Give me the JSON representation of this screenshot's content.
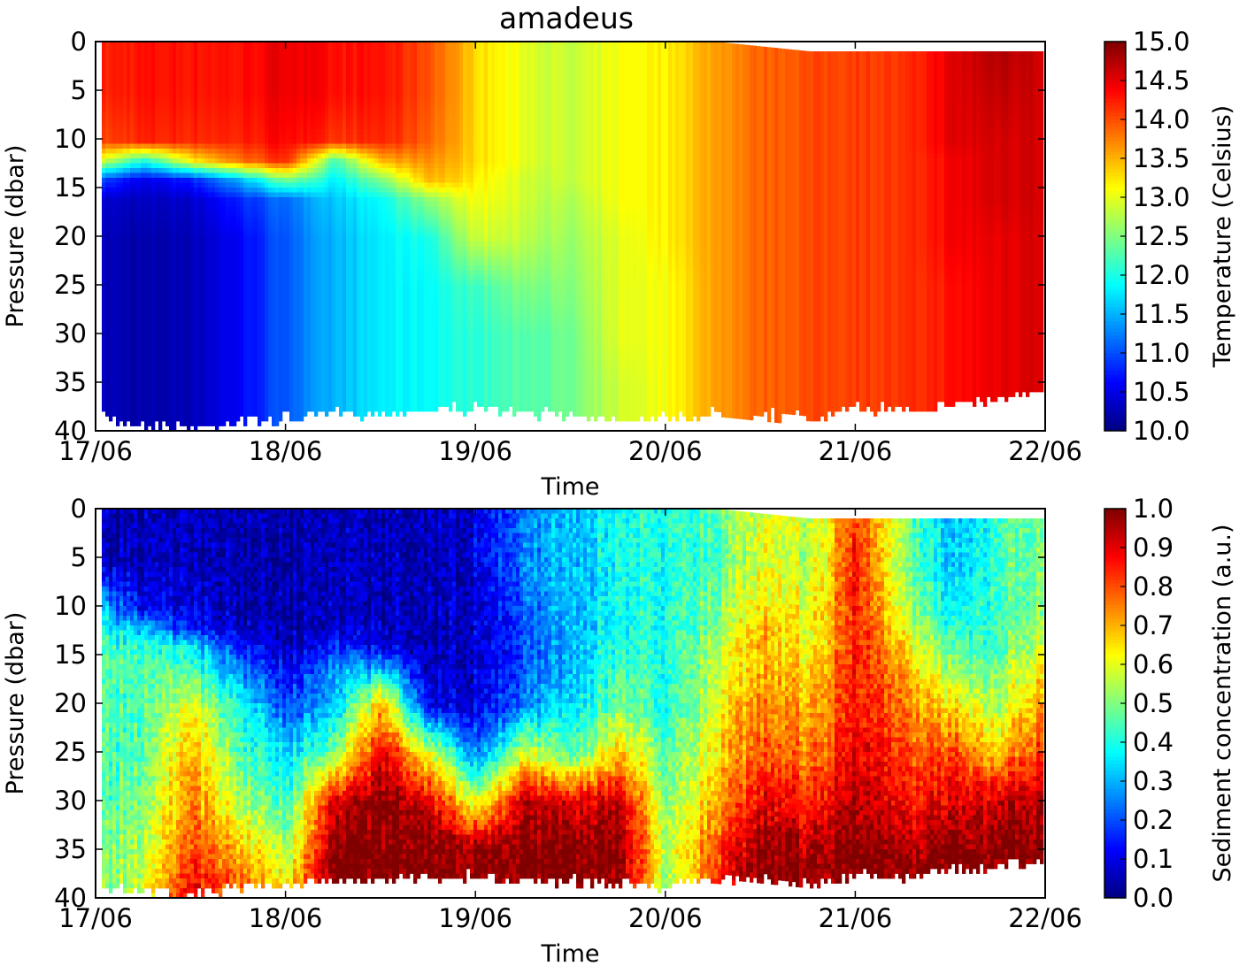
{
  "title": "amadeus",
  "chart_data": [
    {
      "type": "heatmap",
      "xlabel": "Time",
      "ylabel": "Pressure (dbar)",
      "colorbar_label": "Temperature (Celsius)",
      "colormap": "jet",
      "clim": [
        10.0,
        15.0
      ],
      "colorbar_ticks": [
        "10.0",
        "10.5",
        "11.0",
        "11.5",
        "12.0",
        "12.5",
        "13.0",
        "13.5",
        "14.0",
        "14.5",
        "15.0"
      ],
      "x_ticks": [
        "17/06",
        "18/06",
        "19/06",
        "20/06",
        "21/06",
        "22/06"
      ],
      "y_ticks": [
        "0",
        "5",
        "10",
        "15",
        "20",
        "25",
        "30",
        "35",
        "40"
      ],
      "ylim": [
        40,
        0
      ],
      "times": [
        "17/06 00:00",
        "17/06 06:00",
        "17/06 12:00",
        "17/06 18:00",
        "18/06 00:00",
        "18/06 06:00",
        "18/06 12:00",
        "18/06 18:00",
        "19/06 00:00",
        "19/06 06:00",
        "19/06 12:00",
        "19/06 18:00",
        "20/06 00:00",
        "20/06 06:00",
        "20/06 12:00",
        "20/06 18:00",
        "21/06 00:00",
        "21/06 06:00",
        "21/06 12:00",
        "21/06 18:00",
        "22/06 00:00"
      ],
      "pressures": [
        0,
        5,
        10,
        12,
        14,
        16,
        20,
        25,
        30,
        35,
        40
      ],
      "values": [
        [
          14.2,
          14.2,
          14.0,
          13.0,
          11.0,
          10.4,
          10.3,
          10.3,
          10.3,
          10.3,
          10.3
        ],
        [
          14.3,
          14.3,
          14.2,
          12.0,
          10.5,
          10.3,
          10.2,
          10.2,
          10.2,
          10.2,
          10.2
        ],
        [
          14.3,
          14.3,
          14.2,
          13.2,
          10.8,
          10.4,
          10.3,
          10.3,
          10.3,
          10.3,
          10.3
        ],
        [
          14.3,
          14.3,
          14.2,
          13.8,
          11.5,
          10.8,
          10.6,
          10.6,
          10.6,
          10.6,
          10.6
        ],
        [
          14.5,
          14.5,
          14.4,
          14.2,
          12.5,
          11.2,
          11.1,
          11.1,
          11.1,
          11.1,
          11.1
        ],
        [
          14.3,
          14.3,
          14.1,
          12.2,
          11.8,
          11.6,
          11.5,
          11.5,
          11.5,
          11.5,
          11.5
        ],
        [
          14.3,
          14.3,
          14.2,
          13.5,
          12.5,
          11.9,
          11.8,
          11.8,
          11.8,
          11.8,
          11.8
        ],
        [
          14.0,
          14.0,
          13.9,
          13.7,
          13.5,
          12.6,
          12.0,
          11.9,
          11.9,
          11.9,
          11.9
        ],
        [
          13.3,
          13.3,
          13.3,
          13.3,
          13.2,
          13.1,
          12.9,
          12.2,
          12.1,
          12.1,
          12.1
        ],
        [
          13.0,
          13.0,
          13.0,
          13.0,
          12.9,
          12.9,
          12.8,
          12.5,
          12.3,
          12.3,
          12.3
        ],
        [
          12.8,
          12.8,
          12.8,
          12.8,
          12.8,
          12.7,
          12.6,
          12.5,
          12.4,
          12.4,
          12.4
        ],
        [
          13.1,
          13.1,
          13.1,
          13.1,
          13.1,
          13.1,
          13.0,
          13.0,
          13.0,
          12.9,
          12.9
        ],
        [
          13.2,
          13.2,
          13.2,
          13.2,
          13.2,
          13.2,
          13.2,
          13.1,
          13.1,
          13.1,
          13.1
        ],
        [
          13.6,
          13.6,
          13.6,
          13.6,
          13.6,
          13.6,
          13.6,
          13.6,
          13.6,
          13.6,
          13.6
        ],
        [
          13.9,
          13.9,
          13.9,
          13.9,
          13.9,
          13.9,
          13.9,
          13.9,
          13.9,
          13.9,
          13.9
        ],
        [
          14.0,
          14.0,
          14.0,
          14.0,
          14.0,
          14.0,
          14.0,
          14.0,
          14.0,
          14.0,
          14.0
        ],
        [
          14.1,
          14.1,
          14.1,
          14.1,
          14.1,
          14.1,
          14.1,
          14.1,
          14.1,
          14.1,
          14.1
        ],
        [
          14.1,
          14.1,
          14.1,
          14.1,
          14.1,
          14.1,
          14.1,
          14.1,
          14.1,
          14.1,
          14.1
        ],
        [
          14.5,
          14.5,
          14.5,
          14.4,
          14.4,
          14.4,
          14.4,
          14.3,
          14.3,
          14.3,
          14.3
        ],
        [
          14.8,
          14.7,
          14.6,
          14.6,
          14.6,
          14.6,
          14.5,
          14.5,
          14.5,
          14.5,
          14.5
        ],
        [
          14.6,
          14.6,
          14.6,
          14.6,
          14.6,
          14.6,
          14.6,
          14.6,
          14.6,
          14.6,
          14.6
        ]
      ],
      "max_pressure": [
        38.5,
        39,
        39.5,
        38.7,
        38.5,
        38,
        38,
        37.5,
        37.5,
        38,
        38,
        38.5,
        38.5,
        38,
        38,
        38.5,
        37.5,
        37.5,
        37,
        36.5,
        36
      ],
      "min_pressure": [
        0,
        0,
        0,
        0,
        0,
        0,
        0,
        0,
        0,
        0,
        0,
        0,
        0,
        0,
        0.5,
        1,
        1,
        1,
        1,
        1,
        1
      ]
    },
    {
      "type": "heatmap",
      "xlabel": "Time",
      "ylabel": "Pressure (dbar)",
      "colorbar_label": "Sediment concentration (a.u.)",
      "colormap": "jet",
      "clim": [
        0.0,
        1.0
      ],
      "colorbar_ticks": [
        "0.0",
        "0.1",
        "0.2",
        "0.3",
        "0.4",
        "0.5",
        "0.6",
        "0.7",
        "0.8",
        "0.9",
        "1.0"
      ],
      "x_ticks": [
        "17/06",
        "18/06",
        "19/06",
        "20/06",
        "21/06",
        "22/06"
      ],
      "y_ticks": [
        "0",
        "5",
        "10",
        "15",
        "20",
        "25",
        "30",
        "35",
        "40"
      ],
      "ylim": [
        40,
        0
      ],
      "times": [
        "17/06 00:00",
        "17/06 06:00",
        "17/06 12:00",
        "17/06 18:00",
        "18/06 00:00",
        "18/06 06:00",
        "18/06 12:00",
        "18/06 18:00",
        "19/06 00:00",
        "19/06 06:00",
        "19/06 12:00",
        "19/06 18:00",
        "20/06 00:00",
        "20/06 06:00",
        "20/06 12:00",
        "20/06 18:00",
        "21/06 00:00",
        "21/06 06:00",
        "21/06 12:00",
        "21/06 18:00",
        "22/06 00:00"
      ],
      "pressures": [
        0,
        5,
        10,
        12,
        14,
        16,
        20,
        25,
        30,
        35,
        40
      ],
      "values": [
        [
          0.05,
          0.05,
          0.35,
          0.4,
          0.45,
          0.45,
          0.45,
          0.45,
          0.45,
          0.5,
          0.5
        ],
        [
          0.05,
          0.05,
          0.1,
          0.3,
          0.4,
          0.45,
          0.45,
          0.45,
          0.5,
          0.55,
          0.6
        ],
        [
          0.05,
          0.05,
          0.08,
          0.12,
          0.35,
          0.42,
          0.6,
          0.7,
          0.75,
          0.8,
          0.9
        ],
        [
          0.05,
          0.05,
          0.06,
          0.08,
          0.15,
          0.25,
          0.4,
          0.45,
          0.55,
          0.7,
          0.8
        ],
        [
          0.05,
          0.05,
          0.05,
          0.06,
          0.08,
          0.12,
          0.2,
          0.35,
          0.45,
          0.55,
          0.7
        ],
        [
          0.05,
          0.05,
          0.05,
          0.06,
          0.15,
          0.25,
          0.3,
          0.5,
          0.9,
          1.0,
          1.0
        ],
        [
          0.05,
          0.05,
          0.05,
          0.06,
          0.1,
          0.3,
          0.7,
          0.9,
          1.0,
          1.0,
          1.0
        ],
        [
          0.05,
          0.05,
          0.05,
          0.05,
          0.05,
          0.06,
          0.1,
          0.6,
          0.9,
          1.0,
          1.0
        ],
        [
          0.1,
          0.1,
          0.08,
          0.08,
          0.08,
          0.08,
          0.1,
          0.25,
          0.6,
          1.0,
          1.0
        ],
        [
          0.25,
          0.25,
          0.22,
          0.2,
          0.2,
          0.2,
          0.25,
          0.6,
          0.95,
          1.0,
          1.0
        ],
        [
          0.3,
          0.3,
          0.3,
          0.3,
          0.3,
          0.3,
          0.35,
          0.45,
          0.9,
          1.0,
          1.0
        ],
        [
          0.4,
          0.4,
          0.4,
          0.4,
          0.42,
          0.45,
          0.5,
          0.7,
          0.95,
          1.0,
          1.0
        ],
        [
          0.4,
          0.4,
          0.4,
          0.4,
          0.4,
          0.4,
          0.4,
          0.45,
          0.5,
          0.55,
          0.5
        ],
        [
          0.45,
          0.45,
          0.5,
          0.5,
          0.55,
          0.55,
          0.6,
          0.65,
          0.7,
          0.8,
          0.85
        ],
        [
          0.6,
          0.6,
          0.65,
          0.7,
          0.7,
          0.7,
          0.75,
          0.8,
          0.9,
          1.0,
          1.0
        ],
        [
          0.55,
          0.55,
          0.6,
          0.6,
          0.6,
          0.65,
          0.7,
          0.75,
          0.85,
          0.95,
          1.0
        ],
        [
          0.8,
          0.85,
          0.85,
          0.85,
          0.85,
          0.85,
          0.85,
          0.9,
          0.95,
          1.0,
          1.0
        ],
        [
          0.5,
          0.5,
          0.55,
          0.6,
          0.65,
          0.7,
          0.75,
          0.8,
          0.85,
          0.95,
          1.0
        ],
        [
          0.3,
          0.3,
          0.35,
          0.4,
          0.45,
          0.5,
          0.65,
          0.8,
          0.9,
          1.0,
          1.0
        ],
        [
          0.45,
          0.45,
          0.45,
          0.45,
          0.45,
          0.5,
          0.55,
          0.7,
          0.95,
          1.0,
          1.0
        ],
        [
          0.5,
          0.5,
          0.5,
          0.55,
          0.6,
          0.65,
          0.75,
          0.85,
          0.95,
          1.0,
          1.0
        ]
      ],
      "max_pressure": [
        38.5,
        39,
        39.5,
        38.7,
        38.5,
        38,
        38,
        37.5,
        37.5,
        38,
        38,
        38.5,
        38.5,
        38,
        38,
        38.5,
        37.5,
        37.5,
        37,
        36.5,
        36
      ],
      "min_pressure": [
        0,
        0,
        0,
        0,
        0,
        0,
        0,
        0,
        0,
        0,
        0,
        0,
        0,
        0,
        0.5,
        1,
        1,
        1,
        1,
        1,
        1
      ]
    }
  ]
}
